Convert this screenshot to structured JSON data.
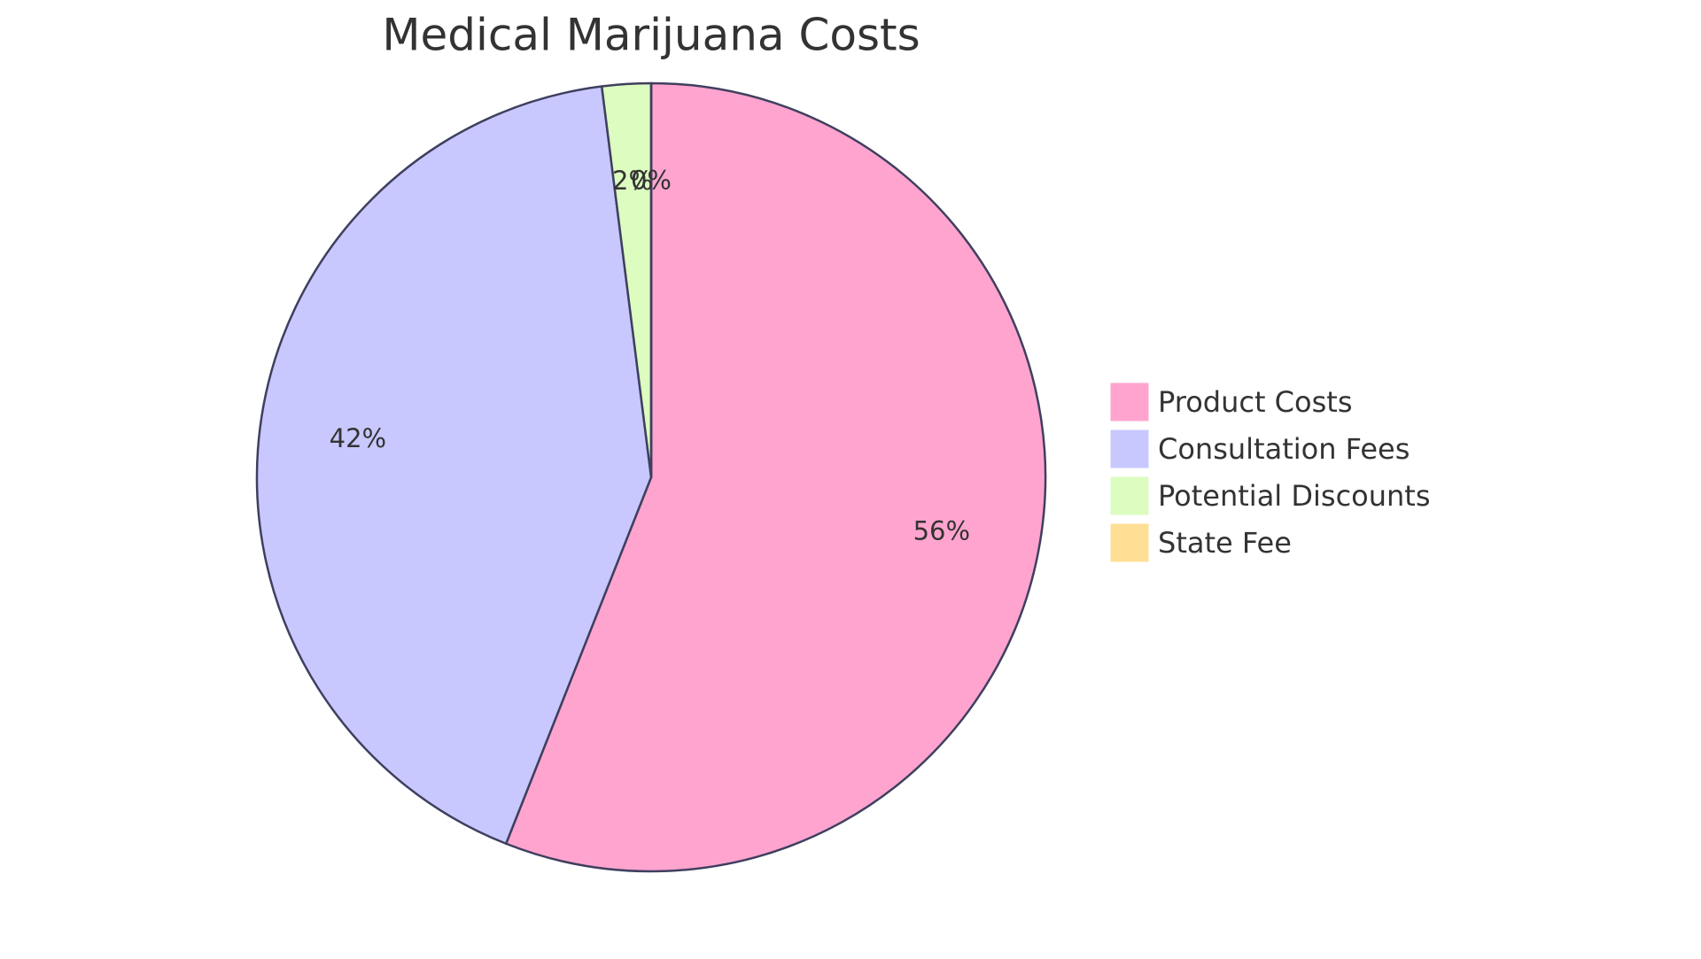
{
  "chart_data": {
    "type": "pie",
    "title": "Medical Marijuana Costs",
    "categories": [
      "Product Costs",
      "Consultation Fees",
      "Potential Discounts",
      "State Fee"
    ],
    "values": [
      56,
      42,
      2,
      0
    ],
    "value_labels": [
      "56%",
      "42%",
      "2%",
      "0%"
    ],
    "colors": [
      "#FFA4CF",
      "#C8C8FF",
      "#DCFCC0",
      "#FFDF94"
    ],
    "legend": "right"
  }
}
